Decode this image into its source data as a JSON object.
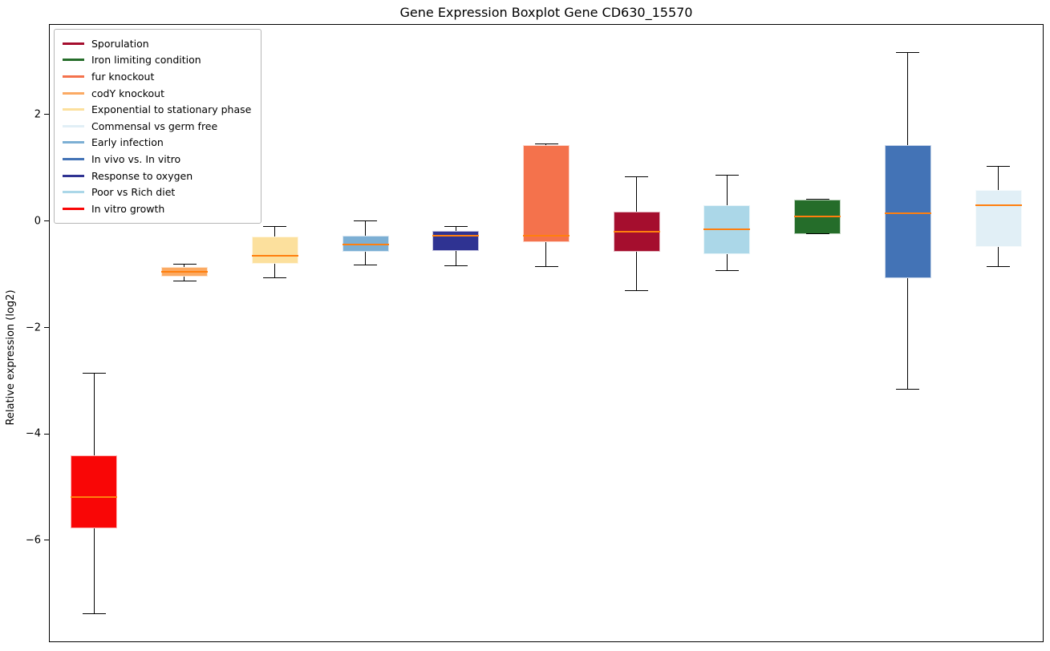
{
  "chart_data": {
    "type": "boxplot",
    "title": "Gene Expression Boxplot Gene CD630_15570",
    "ylabel": "Relative expression (log2)",
    "xlabel": "",
    "ylim": [
      -7.91,
      3.7
    ],
    "yticks": [
      2,
      0,
      -2,
      -4,
      -6
    ],
    "grid": false,
    "median_color": "#ff7f0e",
    "whisker_color": "#000000",
    "boxes": [
      {
        "condition": "In vitro growth",
        "color": "#f90606",
        "whislo": -7.38,
        "q1": -5.77,
        "med": -5.19,
        "q3": -4.4,
        "whishi": -2.86
      },
      {
        "condition": "codY knockout",
        "color": "#fbaa63",
        "whislo": -1.13,
        "q1": -1.05,
        "med": -0.95,
        "q3": -0.87,
        "whishi": -0.82
      },
      {
        "condition": "Exponential to stationary phase",
        "color": "#fce09d",
        "whislo": -1.07,
        "q1": -0.8,
        "med": -0.65,
        "q3": -0.29,
        "whishi": -0.1
      },
      {
        "condition": "Early infection",
        "color": "#7cafd4",
        "whislo": -0.83,
        "q1": -0.58,
        "med": -0.44,
        "q3": -0.27,
        "whishi": 0.0
      },
      {
        "condition": "Response to oxygen",
        "color": "#2f3392",
        "whislo": -0.84,
        "q1": -0.56,
        "med": -0.28,
        "q3": -0.19,
        "whishi": -0.1
      },
      {
        "condition": "fur knockout",
        "color": "#f4724c",
        "whislo": -0.86,
        "q1": -0.39,
        "med": -0.28,
        "q3": 1.42,
        "whishi": 1.44
      },
      {
        "condition": "Sporulation",
        "color": "#a50e2e",
        "whislo": -1.31,
        "q1": -0.57,
        "med": -0.2,
        "q3": 0.17,
        "whishi": 0.83
      },
      {
        "condition": "Poor vs Rich diet",
        "color": "#abd7e8",
        "whislo": -0.93,
        "q1": -0.62,
        "med": -0.15,
        "q3": 0.29,
        "whishi": 0.86
      },
      {
        "condition": "Iron limiting condition",
        "color": "#256d2a",
        "whislo": -0.24,
        "q1": -0.24,
        "med": 0.09,
        "q3": 0.4,
        "whishi": 0.41
      },
      {
        "condition": "In vivo vs. In vitro",
        "color": "#4373b6",
        "whislo": -3.17,
        "q1": -1.07,
        "med": 0.14,
        "q3": 1.43,
        "whishi": 3.16
      },
      {
        "condition": "Commensal vs germ free",
        "color": "#e1eff6",
        "whislo": -0.86,
        "q1": -0.48,
        "med": 0.3,
        "q3": 0.58,
        "whishi": 1.02
      }
    ],
    "legend": {
      "position": "upper left",
      "items": [
        {
          "label": "Sporulation",
          "color": "#a50e2e"
        },
        {
          "label": "Iron limiting condition",
          "color": "#256d2a"
        },
        {
          "label": "fur knockout",
          "color": "#f4724c"
        },
        {
          "label": "codY knockout",
          "color": "#fbaa63"
        },
        {
          "label": "Exponential to stationary phase",
          "color": "#fce09d"
        },
        {
          "label": "Commensal vs germ free",
          "color": "#e1eff6"
        },
        {
          "label": "Early infection",
          "color": "#7cafd4"
        },
        {
          "label": "In vivo vs. In vitro",
          "color": "#4373b6"
        },
        {
          "label": "Response to oxygen",
          "color": "#2f3392"
        },
        {
          "label": "Poor vs Rich diet",
          "color": "#abd7e8"
        },
        {
          "label": "In vitro growth",
          "color": "#f90606"
        }
      ]
    }
  }
}
